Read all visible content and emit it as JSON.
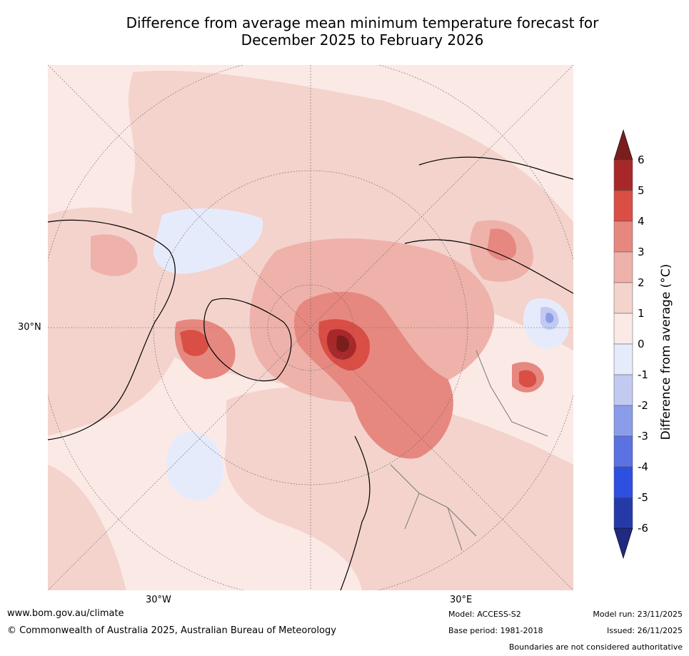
{
  "title_line1": "Difference from average mean minimum temperature forecast for",
  "title_line2": "December 2025 to February 2026",
  "map": {
    "lat_label": "30°N",
    "lon_label_w": "30°W",
    "lon_label_e": "30°E",
    "colors": {
      "cold3": "#8b9de9",
      "cold2": "#c2caf2",
      "cold1": "#e6ebfb",
      "warm0": "#fbe9e5",
      "warm1": "#f4d3cd",
      "warm2": "#eeb2aa",
      "warm3": "#e68880",
      "warm4": "#d94e45",
      "warm5": "#a8282a",
      "warm6": "#7a1e1c"
    }
  },
  "colorbar": {
    "label": "Difference from average (°C)",
    "ticks": [
      "6",
      "5",
      "4",
      "3",
      "2",
      "1",
      "0",
      "-1",
      "-2",
      "-3",
      "-4",
      "-5",
      "-6"
    ],
    "colors": [
      "#a8282a",
      "#d94e45",
      "#e68880",
      "#eeb2aa",
      "#f4d3cd",
      "#fbe9e5",
      "#e6ebfb",
      "#c2caf2",
      "#8b9de9",
      "#5b72e3",
      "#2f4fe0",
      "#253aa8"
    ],
    "over_color": "#7a1e1c",
    "under_color": "#1f2a80"
  },
  "footer": {
    "website": "www.bom.gov.au/climate",
    "copyright": "© Commonwealth of Australia 2025, Australian Bureau of Meteorology",
    "model": "Model: ACCESS-S2",
    "base_period": "Base period: 1981-2018",
    "model_run": "Model run: 23/11/2025",
    "issued": "Issued: 26/11/2025",
    "disclaimer": "Boundaries are not considered authoritative"
  }
}
